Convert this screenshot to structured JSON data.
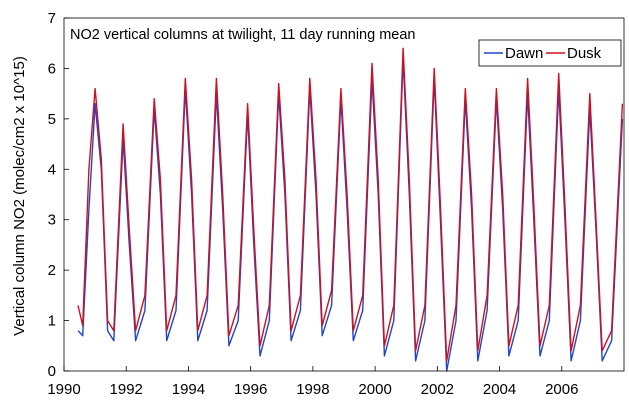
{
  "chart_data": {
    "type": "line",
    "title": "NO2 vertical columns at twilight, 11 day running mean",
    "xlabel": "",
    "ylabel": "Vertical column NO2 (molec/cm2 x 10^15)",
    "xlim": [
      1990,
      2008
    ],
    "ylim": [
      0,
      7
    ],
    "xticks": [
      1990,
      1992,
      1994,
      1996,
      1998,
      2000,
      2002,
      2004,
      2006
    ],
    "yticks": [
      0,
      1,
      2,
      3,
      4,
      5,
      6,
      7
    ],
    "grid": false,
    "legend_position": "top-right",
    "series": [
      {
        "name": "Dawn",
        "color": "#2244cc",
        "x": [
          1990.45,
          1990.6,
          1990.8,
          1991.0,
          1991.2,
          1991.4,
          1991.6,
          1991.9,
          1992.1,
          1992.3,
          1992.6,
          1992.9,
          1993.1,
          1993.3,
          1993.6,
          1993.9,
          1994.1,
          1994.3,
          1994.6,
          1994.9,
          1995.1,
          1995.3,
          1995.6,
          1995.9,
          1996.1,
          1996.3,
          1996.6,
          1996.9,
          1997.1,
          1997.3,
          1997.6,
          1997.9,
          1998.1,
          1998.3,
          1998.6,
          1998.9,
          1999.1,
          1999.3,
          1999.6,
          1999.9,
          2000.1,
          2000.3,
          2000.6,
          2000.9,
          2001.1,
          2001.3,
          2001.6,
          2001.9,
          2002.1,
          2002.3,
          2002.6,
          2002.9,
          2003.1,
          2003.3,
          2003.6,
          2003.9,
          2004.1,
          2004.3,
          2004.6,
          2004.9,
          2005.1,
          2005.3,
          2005.6,
          2005.9,
          2006.1,
          2006.3,
          2006.6,
          2006.9,
          2007.1,
          2007.3,
          2007.6,
          2007.95
        ],
        "y": [
          0.8,
          0.7,
          3.2,
          5.3,
          4.0,
          0.8,
          0.6,
          4.6,
          2.5,
          0.6,
          1.2,
          5.2,
          3.5,
          0.6,
          1.2,
          5.6,
          3.5,
          0.6,
          1.2,
          5.5,
          3.2,
          0.5,
          1.0,
          5.1,
          2.5,
          0.3,
          1.0,
          5.5,
          3.5,
          0.6,
          1.2,
          5.6,
          3.5,
          0.7,
          1.3,
          5.4,
          3.2,
          0.6,
          1.2,
          5.8,
          3.5,
          0.3,
          1.0,
          6.2,
          3.5,
          0.2,
          1.0,
          5.8,
          3.0,
          0.0,
          1.0,
          5.4,
          3.2,
          0.2,
          1.2,
          5.4,
          3.2,
          0.3,
          1.0,
          5.5,
          3.0,
          0.3,
          1.0,
          5.6,
          3.0,
          0.2,
          1.0,
          5.2,
          2.8,
          0.2,
          0.6,
          5.0
        ]
      },
      {
        "name": "Dusk",
        "color": "#cc1122",
        "x": [
          1990.45,
          1990.6,
          1990.8,
          1991.0,
          1991.2,
          1991.4,
          1991.6,
          1991.9,
          1992.1,
          1992.3,
          1992.6,
          1992.9,
          1993.1,
          1993.3,
          1993.6,
          1993.9,
          1994.1,
          1994.3,
          1994.6,
          1994.9,
          1995.1,
          1995.3,
          1995.6,
          1995.9,
          1996.1,
          1996.3,
          1996.6,
          1996.9,
          1997.1,
          1997.3,
          1997.6,
          1997.9,
          1998.1,
          1998.3,
          1998.6,
          1998.9,
          1999.1,
          1999.3,
          1999.6,
          1999.9,
          2000.1,
          2000.3,
          2000.6,
          2000.9,
          2001.1,
          2001.3,
          2001.6,
          2001.9,
          2002.1,
          2002.3,
          2002.6,
          2002.9,
          2003.1,
          2003.3,
          2003.6,
          2003.9,
          2004.1,
          2004.3,
          2004.6,
          2004.9,
          2005.1,
          2005.3,
          2005.6,
          2005.9,
          2006.1,
          2006.3,
          2006.6,
          2006.9,
          2007.1,
          2007.3,
          2007.6,
          2007.95
        ],
        "y": [
          1.3,
          0.9,
          4.0,
          5.6,
          4.2,
          1.0,
          0.8,
          4.9,
          2.8,
          0.8,
          1.5,
          5.4,
          3.8,
          0.8,
          1.5,
          5.8,
          3.8,
          0.8,
          1.5,
          5.8,
          3.5,
          0.7,
          1.3,
          5.3,
          2.8,
          0.5,
          1.3,
          5.7,
          3.8,
          0.8,
          1.5,
          5.8,
          3.8,
          0.9,
          1.6,
          5.6,
          3.5,
          0.8,
          1.5,
          6.1,
          3.8,
          0.5,
          1.3,
          6.4,
          3.8,
          0.4,
          1.3,
          6.0,
          3.3,
          0.2,
          1.3,
          5.6,
          3.5,
          0.4,
          1.5,
          5.6,
          3.5,
          0.5,
          1.3,
          5.8,
          3.3,
          0.5,
          1.3,
          5.9,
          3.3,
          0.4,
          1.3,
          5.5,
          3.0,
          0.4,
          0.8,
          5.3
        ]
      }
    ]
  }
}
